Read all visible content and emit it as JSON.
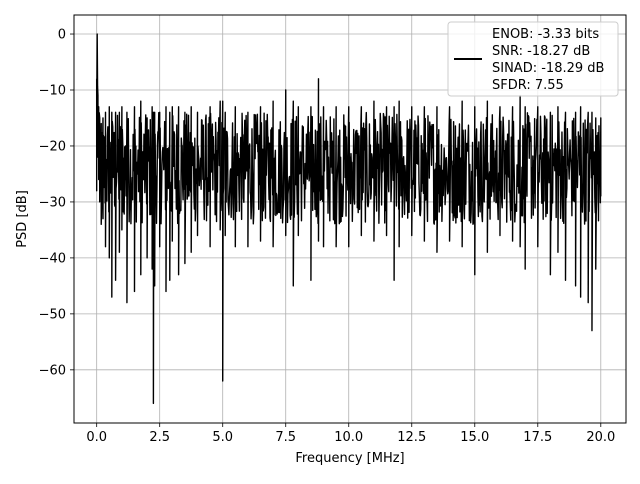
{
  "chart_data": {
    "type": "line",
    "title": "",
    "xlabel": "Frequency [MHz]",
    "ylabel": "PSD [dB]",
    "xlim": [
      -0.9,
      21.0
    ],
    "ylim": [
      -69.5,
      3.4
    ],
    "xticks": [
      0.0,
      2.5,
      5.0,
      7.5,
      10.0,
      12.5,
      15.0,
      17.5,
      20.0
    ],
    "xtick_labels": [
      "0.0",
      "2.5",
      "5.0",
      "7.5",
      "10.0",
      "12.5",
      "15.0",
      "17.5",
      "20.0"
    ],
    "yticks": [
      0,
      -10,
      -20,
      -30,
      -40,
      -50,
      -60
    ],
    "ytick_labels": [
      "0",
      "−10",
      "−20",
      "−30",
      "−40",
      "−50",
      "−60"
    ],
    "grid": true,
    "legend_position": "upper-right",
    "legend_lines": [
      "ENOB: -3.33 bits",
      "SNR: -18.27 dB",
      "SINAD: -18.29 dB",
      "SFDR: 7.55"
    ],
    "series": [
      {
        "color": "#000000",
        "x": [
          0.0,
          0.02,
          0.05,
          0.08,
          0.12,
          0.18,
          0.25,
          0.35,
          0.5,
          0.6,
          0.75,
          0.9,
          1.0,
          1.2,
          1.5,
          1.75,
          2.0,
          2.2,
          2.25,
          2.3,
          2.5,
          2.75,
          2.9,
          3.0,
          3.25,
          3.5,
          3.75,
          4.0,
          4.5,
          4.9,
          5.0,
          5.1,
          5.5,
          6.0,
          6.5,
          7.0,
          7.5,
          7.8,
          8.0,
          8.5,
          8.8,
          9.0,
          9.5,
          10.0,
          10.5,
          11.0,
          11.5,
          11.8,
          12.0,
          12.5,
          13.0,
          13.5,
          14.0,
          14.5,
          15.0,
          15.5,
          16.0,
          16.5,
          16.8,
          17.0,
          17.5,
          18.0,
          18.3,
          18.6,
          19.0,
          19.2,
          19.5,
          19.65,
          19.8,
          20.0
        ],
        "low": [
          -28,
          0,
          -22,
          -26,
          -30,
          -34,
          -33,
          -38,
          -40,
          -47,
          -44,
          -39,
          -35,
          -48,
          -46,
          -43,
          -40,
          -42,
          -66,
          -45,
          -38,
          -46,
          -44,
          -37,
          -43,
          -41,
          -39,
          -36,
          -38,
          -35,
          -62,
          -36,
          -38,
          -38,
          -37,
          -38,
          -36,
          -45,
          -36,
          -44,
          -37,
          -38,
          -38,
          -38,
          -36,
          -37,
          -36,
          -44,
          -38,
          -36,
          -37,
          -39,
          -37,
          -38,
          -43,
          -39,
          -36,
          -37,
          -38,
          -42,
          -38,
          -43,
          -39,
          -44,
          -45,
          -47,
          -48,
          -53,
          -42,
          -29
        ],
        "high": [
          -8,
          0,
          -11,
          -13,
          -15,
          -16,
          -15,
          -14,
          -13,
          -14,
          -14,
          -14,
          -13,
          -14,
          -13,
          -12,
          -15,
          -13,
          -14,
          -14,
          -14,
          -13,
          -14,
          -13,
          -13,
          -14,
          -13,
          -14,
          -13,
          -12,
          -12,
          -14,
          -13,
          -14,
          -13,
          -12,
          -10,
          -12,
          -13,
          -13,
          -8,
          -13,
          -13,
          -13,
          -13,
          -12,
          -13,
          -13,
          -12,
          -13,
          -13,
          -13,
          -13,
          -12,
          -13,
          -12,
          -13,
          -13,
          -11,
          -13,
          -13,
          -14,
          -13,
          -14,
          -14,
          -13,
          -14,
          -14,
          -15,
          -15
        ]
      }
    ]
  }
}
